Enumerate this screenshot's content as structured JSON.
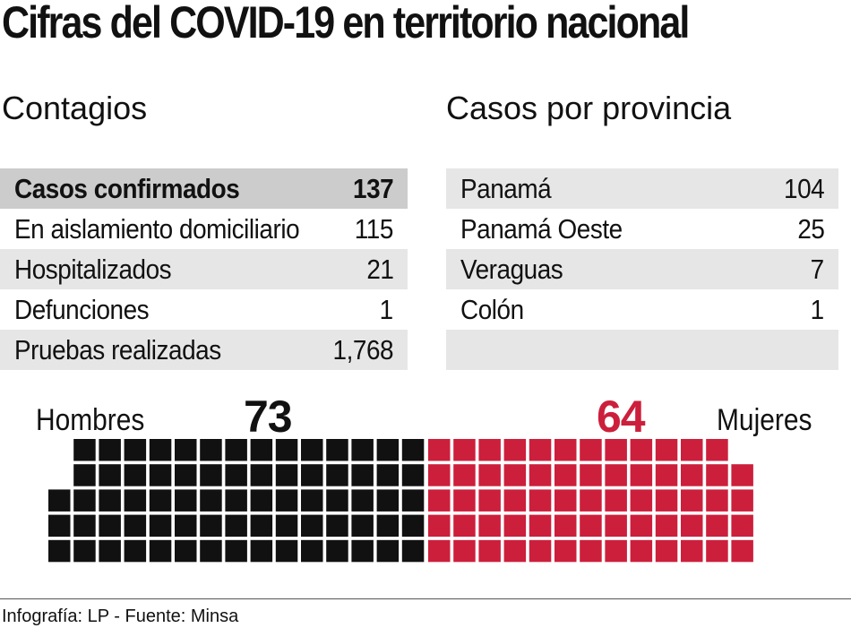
{
  "title": "Cifras del COVID-19 en territorio nacional",
  "contagios": {
    "title": "Contagios",
    "rows": [
      {
        "label": "Casos confirmados",
        "value": "137"
      },
      {
        "label": "En aislamiento domiciliario",
        "value": "115"
      },
      {
        "label": "Hospitalizados",
        "value": "21"
      },
      {
        "label": "Defunciones",
        "value": "1"
      },
      {
        "label": "Pruebas realizadas",
        "value": "1,768"
      }
    ]
  },
  "provincias": {
    "title": "Casos por provincia",
    "rows": [
      {
        "label": "Panamá",
        "value": "104"
      },
      {
        "label": "Panamá Oeste",
        "value": "25"
      },
      {
        "label": "Veraguas",
        "value": "7"
      },
      {
        "label": "Colón",
        "value": "1"
      },
      {
        "label": "",
        "value": ""
      }
    ]
  },
  "chart_data": {
    "type": "waffle",
    "series": [
      {
        "name": "Hombres",
        "value": 73,
        "color": "#111111"
      },
      {
        "name": "Mujeres",
        "value": 64,
        "color": "#cc1f3c"
      }
    ]
  },
  "labels": {
    "hombres": "Hombres",
    "mujeres": "Mujeres",
    "hombres_value": "73",
    "mujeres_value": "64"
  },
  "colors": {
    "hombres": "#111111",
    "mujeres": "#cc1f3c",
    "table_dark": "#cccccc",
    "table_light": "#e6e6e6"
  },
  "source": "Infografía: LP - Fuente: Minsa"
}
